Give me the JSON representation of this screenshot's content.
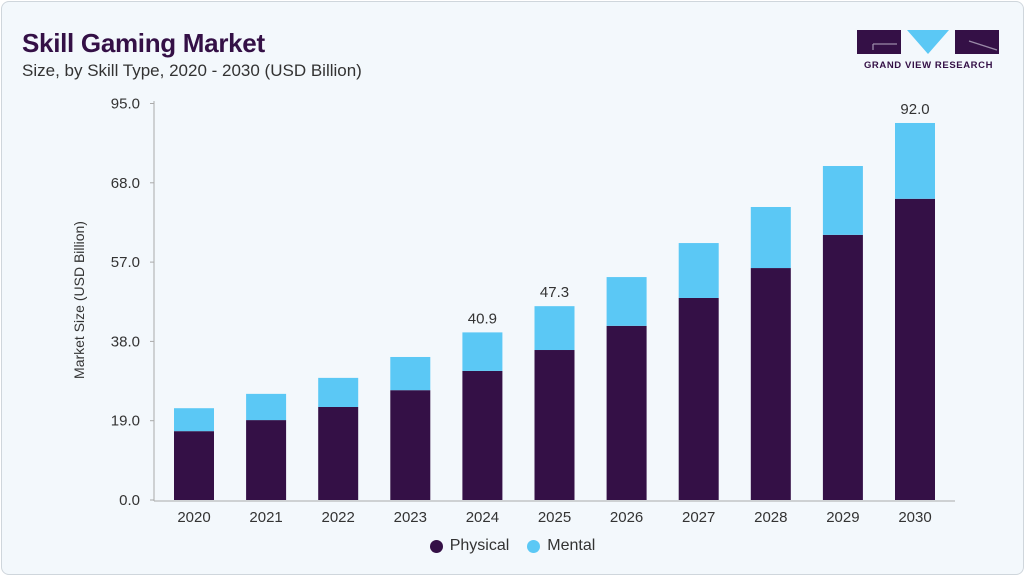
{
  "header": {
    "title": "Skill Gaming Market",
    "subtitle": "Size, by Skill Type, 2020 - 2030 (USD Billion)"
  },
  "logo": {
    "text": "GRAND VIEW RESEARCH"
  },
  "chart_data": {
    "type": "bar",
    "stacked": true,
    "title": "Skill Gaming Market",
    "subtitle": "Size, by Skill Type, 2020 - 2030 (USD Billion)",
    "xlabel": "",
    "ylabel": "Market Size (USD Billion)",
    "ylim": [
      0,
      95
    ],
    "y_tick_labels": [
      "0.0",
      "19.0",
      "38.0",
      "57.0",
      "68.0",
      "95.0"
    ],
    "grid": false,
    "legend_position": "bottom",
    "categories": [
      "2020",
      "2021",
      "2022",
      "2023",
      "2024",
      "2025",
      "2026",
      "2027",
      "2028",
      "2029",
      "2030"
    ],
    "series": [
      {
        "name": "Physical",
        "color": "#341046",
        "values": [
          16.8,
          19.5,
          22.7,
          26.8,
          31.5,
          36.6,
          42.5,
          49.3,
          56.6,
          64.7,
          73.5
        ]
      },
      {
        "name": "Mental",
        "color": "#5bc8f5",
        "values": [
          5.6,
          6.4,
          7.1,
          8.1,
          9.4,
          10.7,
          11.9,
          13.4,
          14.9,
          16.8,
          18.5
        ]
      }
    ],
    "data_labels": {
      "2024": "40.9",
      "2025": "47.3",
      "2030": "92.0"
    }
  }
}
